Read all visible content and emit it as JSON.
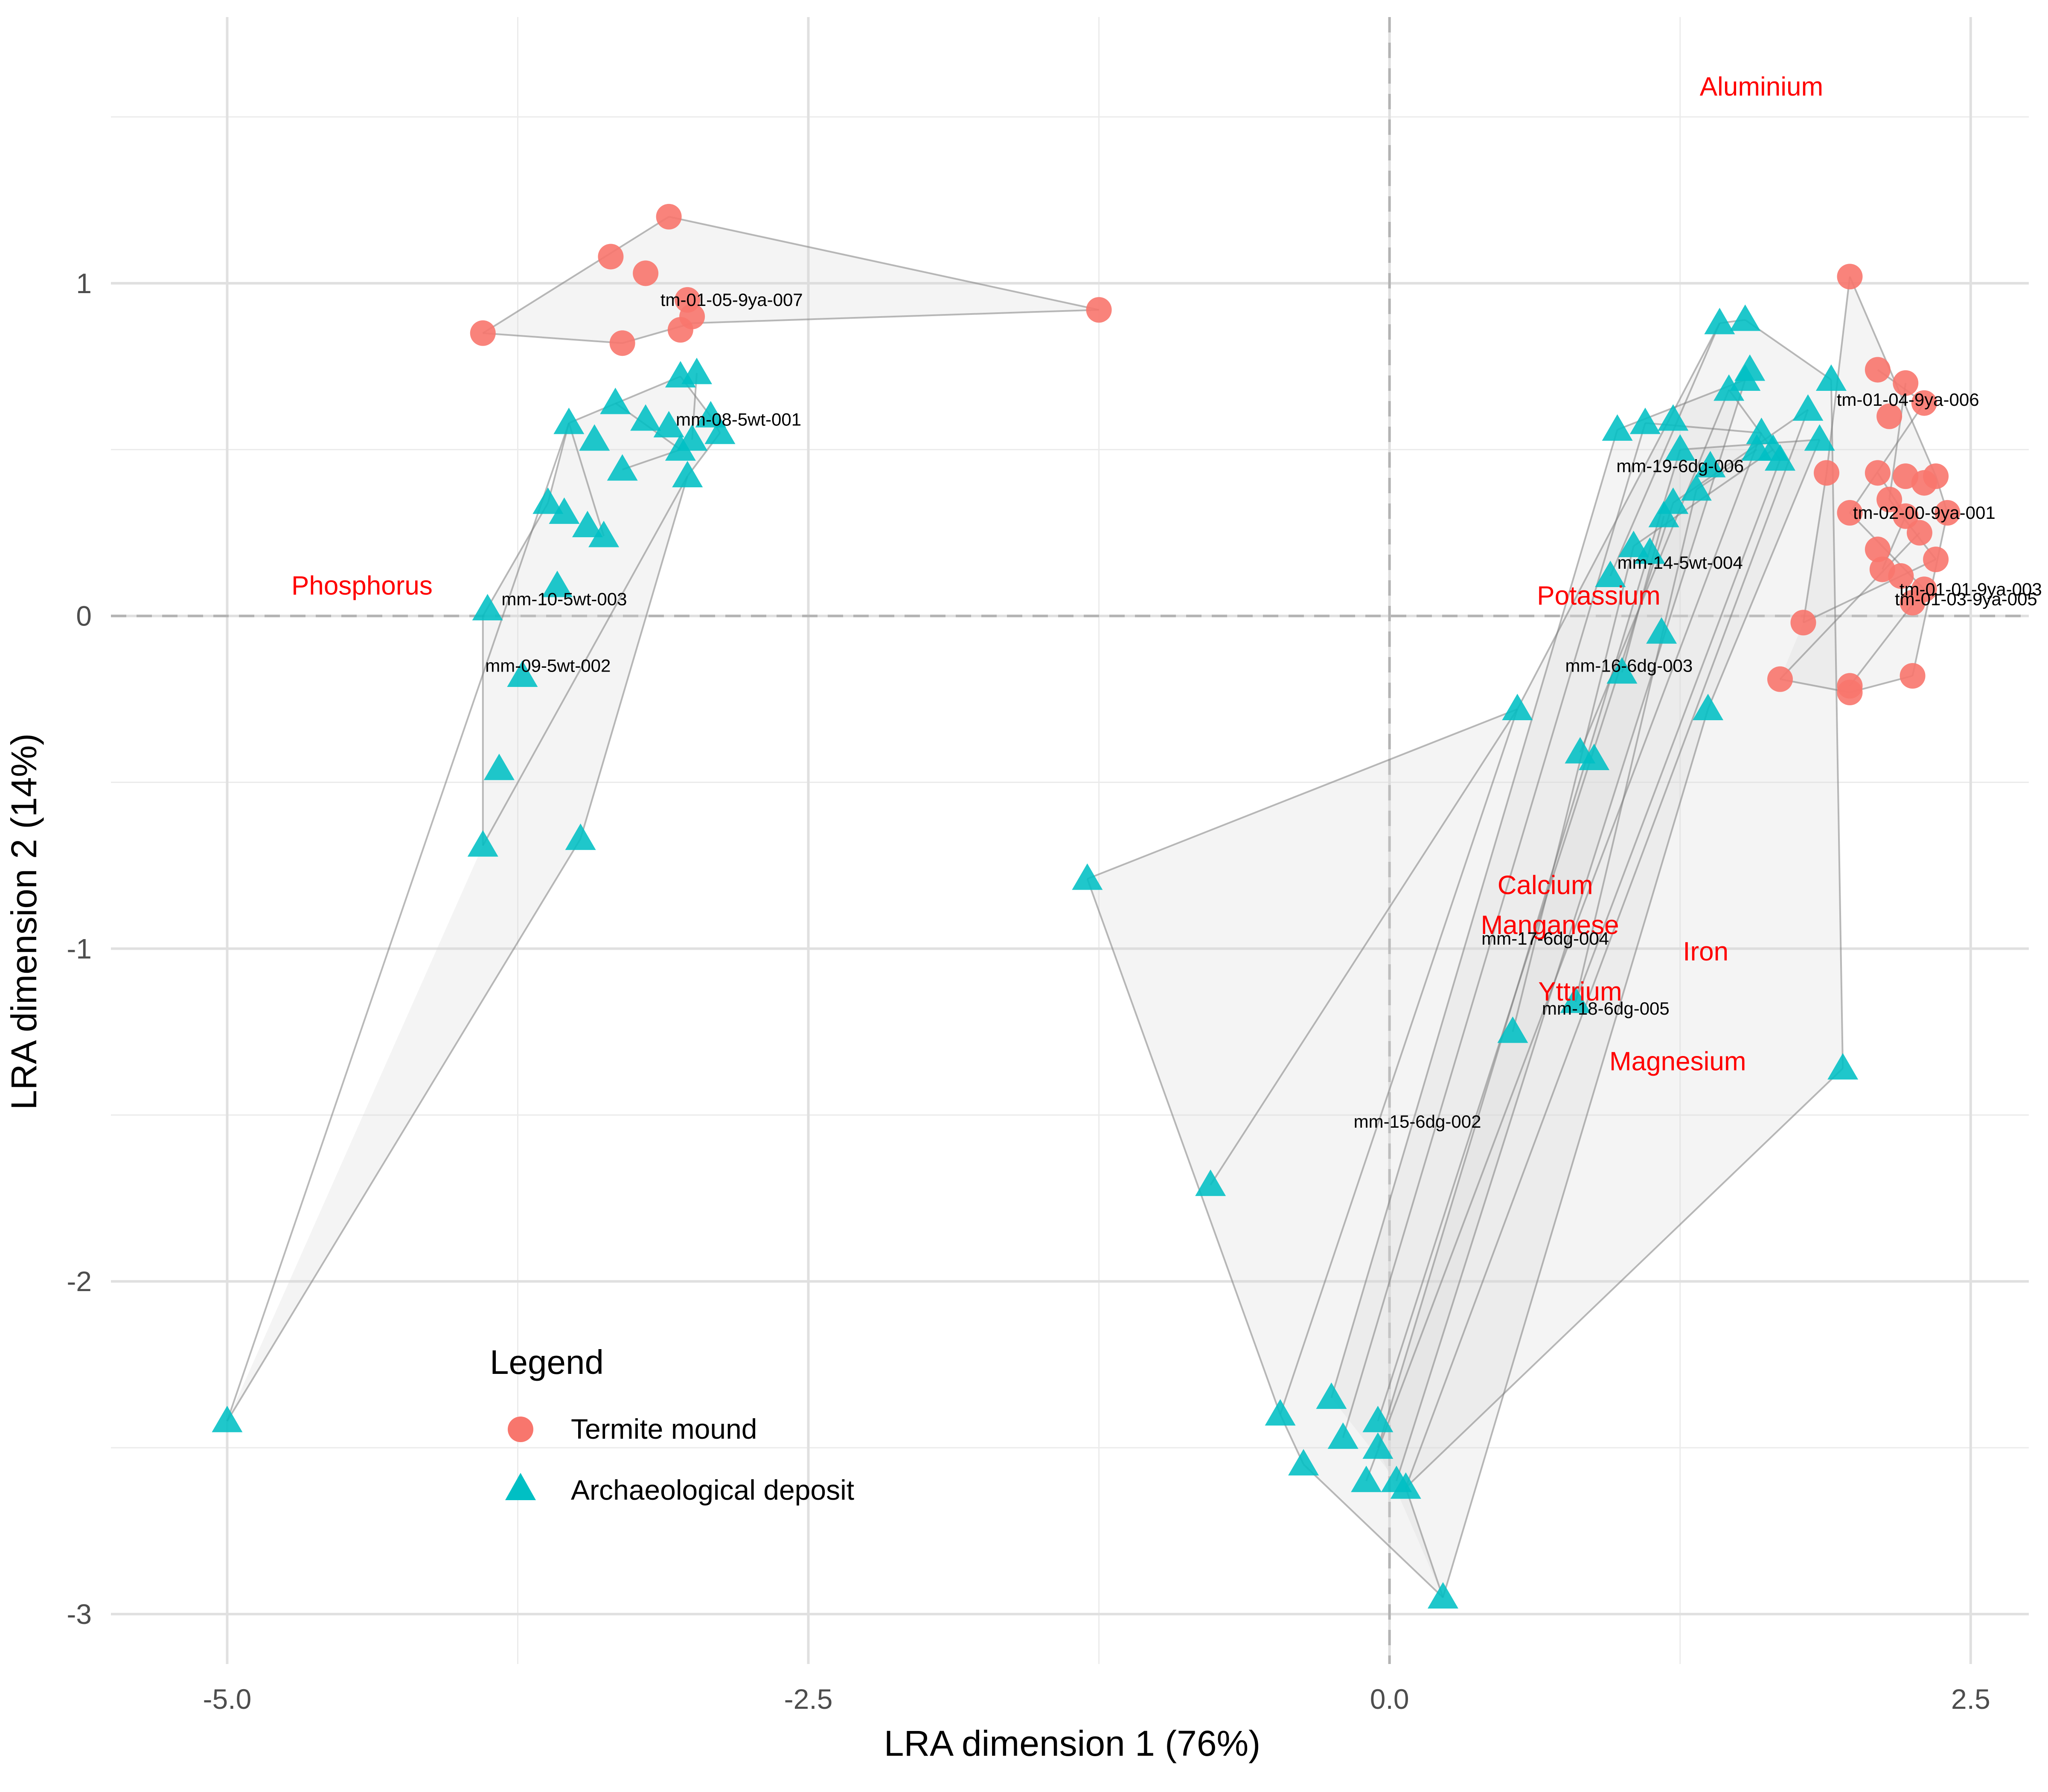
{
  "chart_data": {
    "type": "scatter",
    "xlabel": "LRA dimension 1 (76%)",
    "ylabel": "LRA dimension 2 (14%)",
    "xlim": [
      -5.5,
      2.75
    ],
    "ylim": [
      -3.15,
      1.8
    ],
    "x_ticks": [
      -5.0,
      -2.5,
      0.0,
      2.5
    ],
    "x_tick_labels": [
      "-5.0",
      "-2.5",
      "0.0",
      "2.5"
    ],
    "y_ticks": [
      -3,
      -2,
      -1,
      0,
      1
    ],
    "y_tick_labels": [
      "-3",
      "-2",
      "-1",
      "0",
      "1"
    ],
    "grid": true,
    "reference_lines": {
      "x": 0,
      "y": 0
    },
    "legend": {
      "title": "Legend",
      "placement": "bottom-left",
      "entries": [
        {
          "label": "Termite mound",
          "shape": "circle",
          "color": "#F8766D"
        },
        {
          "label": "Archaeological deposit",
          "shape": "triangle",
          "color": "#00BFC4"
        }
      ]
    },
    "series": [
      {
        "group": "termite",
        "color": "#F8766D",
        "shape": "circle",
        "points": [
          [
            -3.9,
            0.85
          ],
          [
            -3.35,
            1.08
          ],
          [
            -3.1,
            1.2
          ],
          [
            -3.2,
            1.03
          ],
          [
            -3.02,
            0.95
          ],
          [
            -3.0,
            0.9
          ],
          [
            -3.05,
            0.86
          ],
          [
            -3.3,
            0.82
          ],
          [
            -1.25,
            0.92
          ],
          [
            1.98,
            1.02
          ],
          [
            2.1,
            0.74
          ],
          [
            2.22,
            0.7
          ],
          [
            2.3,
            0.64
          ],
          [
            2.15,
            0.6
          ],
          [
            1.88,
            0.43
          ],
          [
            2.1,
            0.43
          ],
          [
            2.22,
            0.42
          ],
          [
            2.3,
            0.4
          ],
          [
            2.35,
            0.42
          ],
          [
            2.15,
            0.35
          ],
          [
            1.98,
            0.31
          ],
          [
            2.22,
            0.3
          ],
          [
            2.4,
            0.31
          ],
          [
            2.28,
            0.25
          ],
          [
            2.1,
            0.2
          ],
          [
            2.35,
            0.17
          ],
          [
            2.12,
            0.14
          ],
          [
            2.2,
            0.12
          ],
          [
            2.3,
            0.08
          ],
          [
            2.25,
            0.04
          ],
          [
            1.78,
            -0.02
          ],
          [
            1.68,
            -0.19
          ],
          [
            1.98,
            -0.21
          ],
          [
            1.98,
            -0.23
          ],
          [
            2.25,
            -0.18
          ]
        ]
      },
      {
        "group": "archaeological",
        "color": "#00BFC4",
        "shape": "triangle",
        "points": [
          [
            -3.53,
            0.58
          ],
          [
            -3.33,
            0.64
          ],
          [
            -3.42,
            0.53
          ],
          [
            -3.1,
            0.57
          ],
          [
            -3.2,
            0.59
          ],
          [
            -3.05,
            0.72
          ],
          [
            -2.98,
            0.73
          ],
          [
            -2.92,
            0.6
          ],
          [
            -2.88,
            0.55
          ],
          [
            -3.0,
            0.53
          ],
          [
            -3.05,
            0.5
          ],
          [
            -3.3,
            0.44
          ],
          [
            -3.02,
            0.42
          ],
          [
            -3.62,
            0.34
          ],
          [
            -3.55,
            0.31
          ],
          [
            -3.45,
            0.27
          ],
          [
            -3.38,
            0.24
          ],
          [
            -3.58,
            0.09
          ],
          [
            -3.88,
            0.02
          ],
          [
            -3.73,
            -0.18
          ],
          [
            -3.83,
            -0.46
          ],
          [
            -3.9,
            -0.69
          ],
          [
            -3.48,
            -0.67
          ],
          [
            -5.0,
            -2.42
          ],
          [
            -1.3,
            -0.79
          ],
          [
            -0.77,
            -1.71
          ],
          [
            0.55,
            -0.28
          ],
          [
            0.82,
            -0.41
          ],
          [
            0.88,
            -0.43
          ],
          [
            1.0,
            -0.17
          ],
          [
            1.17,
            -0.05
          ],
          [
            1.37,
            -0.28
          ],
          [
            0.95,
            0.12
          ],
          [
            1.05,
            0.21
          ],
          [
            1.12,
            0.19
          ],
          [
            1.18,
            0.3
          ],
          [
            1.22,
            0.34
          ],
          [
            1.32,
            0.38
          ],
          [
            1.25,
            0.5
          ],
          [
            1.38,
            0.45
          ],
          [
            0.98,
            0.56
          ],
          [
            1.1,
            0.58
          ],
          [
            1.22,
            0.59
          ],
          [
            1.42,
            0.88
          ],
          [
            1.53,
            0.89
          ],
          [
            1.46,
            0.68
          ],
          [
            1.55,
            0.74
          ],
          [
            1.53,
            0.71
          ],
          [
            1.6,
            0.55
          ],
          [
            1.58,
            0.5
          ],
          [
            1.65,
            0.5
          ],
          [
            1.68,
            0.47
          ],
          [
            1.8,
            0.62
          ],
          [
            1.85,
            0.53
          ],
          [
            1.9,
            0.71
          ],
          [
            1.95,
            -1.36
          ],
          [
            0.53,
            -1.25
          ],
          [
            0.8,
            -1.16
          ],
          [
            -0.47,
            -2.4
          ],
          [
            -0.37,
            -2.55
          ],
          [
            -0.25,
            -2.35
          ],
          [
            -0.2,
            -2.47
          ],
          [
            -0.1,
            -2.6
          ],
          [
            -0.05,
            -2.42
          ],
          [
            -0.05,
            -2.5
          ],
          [
            0.03,
            -2.6
          ],
          [
            0.07,
            -2.62
          ],
          [
            0.23,
            -2.95
          ]
        ]
      }
    ],
    "hull_edges": [
      [
        [
          -3.9,
          0.85
        ],
        [
          -3.1,
          1.2
        ]
      ],
      [
        [
          -3.1,
          1.2
        ],
        [
          -1.25,
          0.92
        ]
      ],
      [
        [
          -1.25,
          0.92
        ],
        [
          -3.0,
          0.88
        ]
      ],
      [
        [
          -3.0,
          0.88
        ],
        [
          -3.3,
          0.82
        ]
      ],
      [
        [
          -3.3,
          0.82
        ],
        [
          -3.9,
          0.85
        ]
      ],
      [
        [
          -3.53,
          0.58
        ],
        [
          -3.05,
          0.72
        ]
      ],
      [
        [
          -3.05,
          0.72
        ],
        [
          -2.92,
          0.6
        ]
      ],
      [
        [
          -2.92,
          0.6
        ],
        [
          -2.88,
          0.55
        ]
      ],
      [
        [
          -2.88,
          0.55
        ],
        [
          -3.02,
          0.42
        ]
      ],
      [
        [
          -3.02,
          0.42
        ],
        [
          -3.9,
          -0.69
        ]
      ],
      [
        [
          -3.9,
          -0.69
        ],
        [
          -3.9,
          0.0
        ]
      ],
      [
        [
          -3.9,
          0.0
        ],
        [
          -3.62,
          0.34
        ]
      ],
      [
        [
          -3.62,
          0.34
        ],
        [
          -3.53,
          0.58
        ]
      ],
      [
        [
          -3.53,
          0.58
        ],
        [
          -5.0,
          -2.42
        ]
      ],
      [
        [
          -5.0,
          -2.42
        ],
        [
          -3.48,
          -0.67
        ]
      ],
      [
        [
          -3.48,
          -0.67
        ],
        [
          -3.02,
          0.42
        ]
      ],
      [
        [
          -3.33,
          0.64
        ],
        [
          -3.05,
          0.5
        ]
      ],
      [
        [
          -3.05,
          0.5
        ],
        [
          -3.3,
          0.44
        ]
      ],
      [
        [
          -3.53,
          0.58
        ],
        [
          -3.38,
          0.24
        ]
      ],
      [
        [
          -2.98,
          0.73
        ],
        [
          -3.0,
          0.53
        ]
      ],
      [
        [
          -1.3,
          -0.79
        ],
        [
          0.55,
          -0.28
        ]
      ],
      [
        [
          0.55,
          -0.28
        ],
        [
          1.42,
          0.88
        ]
      ],
      [
        [
          1.42,
          0.88
        ],
        [
          1.53,
          0.89
        ]
      ],
      [
        [
          1.53,
          0.89
        ],
        [
          1.9,
          0.71
        ]
      ],
      [
        [
          1.9,
          0.71
        ],
        [
          1.95,
          -1.36
        ]
      ],
      [
        [
          1.95,
          -1.36
        ],
        [
          0.07,
          -2.62
        ]
      ],
      [
        [
          0.07,
          -2.62
        ],
        [
          0.23,
          -2.95
        ]
      ],
      [
        [
          0.23,
          -2.95
        ],
        [
          -0.37,
          -2.55
        ]
      ],
      [
        [
          -0.37,
          -2.55
        ],
        [
          -0.47,
          -2.4
        ]
      ],
      [
        [
          -0.47,
          -2.4
        ],
        [
          -1.3,
          -0.79
        ]
      ],
      [
        [
          -0.77,
          -1.71
        ],
        [
          0.55,
          -0.28
        ]
      ],
      [
        [
          0.55,
          -0.28
        ],
        [
          -0.47,
          -2.4
        ]
      ],
      [
        [
          -0.25,
          -2.35
        ],
        [
          0.98,
          0.56
        ]
      ],
      [
        [
          0.98,
          0.56
        ],
        [
          1.53,
          0.71
        ]
      ],
      [
        [
          1.53,
          0.71
        ],
        [
          0.03,
          -2.6
        ]
      ],
      [
        [
          -0.2,
          -2.47
        ],
        [
          1.1,
          0.58
        ]
      ],
      [
        [
          1.1,
          0.58
        ],
        [
          1.6,
          0.55
        ]
      ],
      [
        [
          1.6,
          0.55
        ],
        [
          -0.1,
          -2.6
        ]
      ],
      [
        [
          -0.05,
          -2.42
        ],
        [
          1.22,
          0.34
        ]
      ],
      [
        [
          1.22,
          0.34
        ],
        [
          1.8,
          0.62
        ]
      ],
      [
        [
          1.8,
          0.62
        ],
        [
          0.07,
          -2.62
        ]
      ],
      [
        [
          -0.05,
          -2.5
        ],
        [
          1.25,
          0.5
        ]
      ],
      [
        [
          1.25,
          0.5
        ],
        [
          1.85,
          0.53
        ]
      ],
      [
        [
          1.85,
          0.53
        ],
        [
          1.37,
          -0.28
        ]
      ],
      [
        [
          1.37,
          -0.28
        ],
        [
          0.23,
          -2.95
        ]
      ],
      [
        [
          0.53,
          -1.25
        ],
        [
          1.05,
          0.21
        ]
      ],
      [
        [
          1.05,
          0.21
        ],
        [
          1.65,
          0.5
        ]
      ],
      [
        [
          0.8,
          -1.16
        ],
        [
          1.32,
          0.38
        ]
      ],
      [
        [
          1.32,
          0.38
        ],
        [
          1.58,
          0.5
        ]
      ],
      [
        [
          0.82,
          -0.41
        ],
        [
          1.46,
          0.68
        ]
      ],
      [
        [
          1.46,
          0.68
        ],
        [
          1.68,
          0.47
        ]
      ],
      [
        [
          1.68,
          0.47
        ],
        [
          0.8,
          -1.16
        ]
      ],
      [
        [
          0.95,
          0.12
        ],
        [
          1.42,
          0.88
        ]
      ],
      [
        [
          1.0,
          -0.17
        ],
        [
          1.18,
          0.3
        ]
      ],
      [
        [
          1.98,
          1.02
        ],
        [
          2.35,
          0.42
        ]
      ],
      [
        [
          2.35,
          0.42
        ],
        [
          2.4,
          0.31
        ]
      ],
      [
        [
          2.4,
          0.31
        ],
        [
          2.25,
          -0.18
        ]
      ],
      [
        [
          2.25,
          -0.18
        ],
        [
          1.98,
          -0.23
        ]
      ],
      [
        [
          1.98,
          -0.23
        ],
        [
          1.68,
          -0.19
        ]
      ],
      [
        [
          1.68,
          -0.19
        ],
        [
          2.28,
          0.25
        ]
      ],
      [
        [
          1.78,
          -0.02
        ],
        [
          1.88,
          0.43
        ]
      ],
      [
        [
          1.88,
          0.43
        ],
        [
          1.98,
          1.02
        ]
      ],
      [
        [
          2.1,
          0.74
        ],
        [
          2.3,
          0.64
        ]
      ],
      [
        [
          2.3,
          0.64
        ],
        [
          1.98,
          0.31
        ]
      ],
      [
        [
          1.98,
          0.31
        ],
        [
          2.3,
          0.08
        ]
      ],
      [
        [
          2.3,
          0.08
        ],
        [
          1.98,
          -0.21
        ]
      ],
      [
        [
          2.22,
          0.7
        ],
        [
          2.15,
          0.35
        ]
      ],
      [
        [
          2.15,
          0.35
        ],
        [
          2.35,
          0.17
        ]
      ],
      [
        [
          2.35,
          0.17
        ],
        [
          1.78,
          -0.02
        ]
      ],
      [
        [
          2.1,
          0.43
        ],
        [
          2.22,
          0.3
        ]
      ],
      [
        [
          2.22,
          0.3
        ],
        [
          2.12,
          0.14
        ]
      ]
    ],
    "element_labels": [
      {
        "text": "Aluminium",
        "x": 1.6,
        "y": 1.59
      },
      {
        "text": "Phosphorus",
        "x": -4.42,
        "y": 0.09
      },
      {
        "text": "Potassium",
        "x": 0.9,
        "y": 0.06
      },
      {
        "text": "Calcium",
        "x": 0.67,
        "y": -0.81
      },
      {
        "text": "Manganese",
        "x": 0.69,
        "y": -0.93
      },
      {
        "text": "Iron",
        "x": 1.36,
        "y": -1.01
      },
      {
        "text": "Yttrium",
        "x": 0.82,
        "y": -1.13
      },
      {
        "text": "Magnesium",
        "x": 1.24,
        "y": -1.34
      }
    ],
    "sample_labels": [
      {
        "text": "tm-01-05-9ya-007",
        "x": -2.83,
        "y": 0.95
      },
      {
        "text": "mm-08-5wt-001",
        "x": -2.8,
        "y": 0.59
      },
      {
        "text": "mm-10-5wt-003",
        "x": -3.55,
        "y": 0.05
      },
      {
        "text": "mm-09-5wt-002",
        "x": -3.62,
        "y": -0.15
      },
      {
        "text": "tm-01-04-9ya-006",
        "x": 2.23,
        "y": 0.65
      },
      {
        "text": "mm-19-6dg-006",
        "x": 1.25,
        "y": 0.45
      },
      {
        "text": "tm-02-00-9ya-001",
        "x": 2.3,
        "y": 0.31
      },
      {
        "text": "mm-14-5wt-004",
        "x": 1.25,
        "y": 0.16
      },
      {
        "text": "tm-01-01-9ya-003",
        "x": 2.5,
        "y": 0.08
      },
      {
        "text": "tm-01-03-9ya-005",
        "x": 2.48,
        "y": 0.05
      },
      {
        "text": "mm-16-6dg-003",
        "x": 1.03,
        "y": -0.15
      },
      {
        "text": "mm-17-6dg-004",
        "x": 0.67,
        "y": -0.97
      },
      {
        "text": "mm-18-6dg-005",
        "x": 0.93,
        "y": -1.18
      },
      {
        "text": "mm-15-6dg-002",
        "x": 0.12,
        "y": -1.52
      }
    ]
  }
}
